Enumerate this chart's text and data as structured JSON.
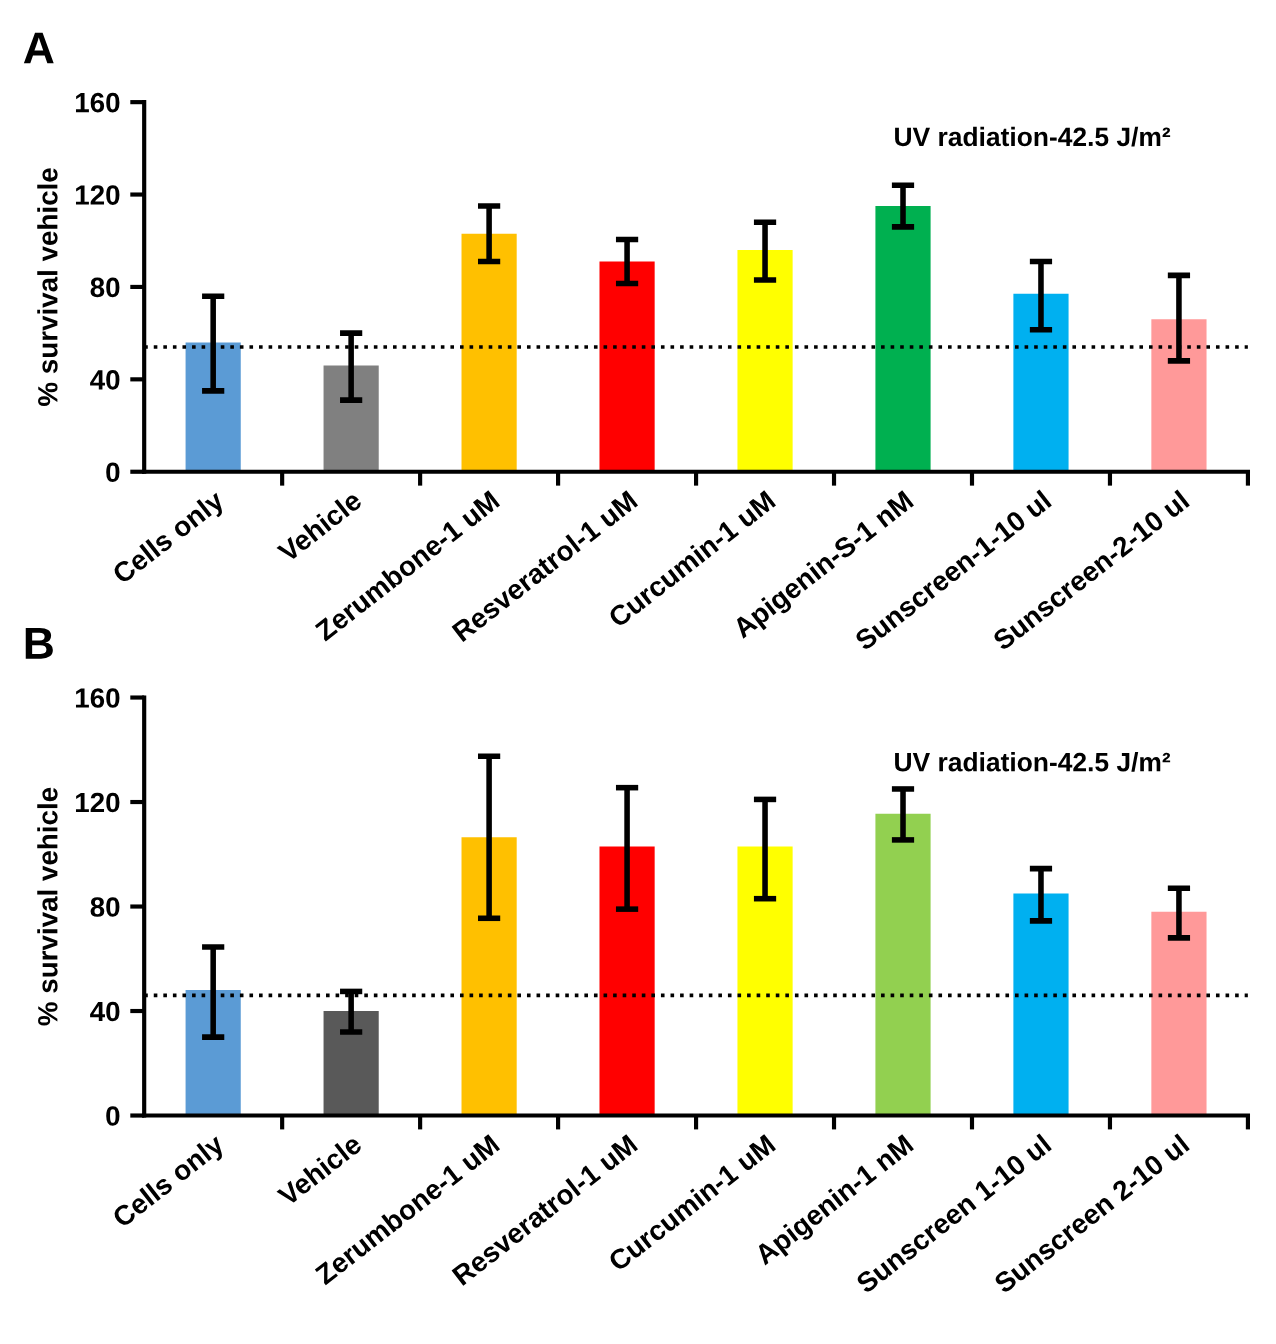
{
  "chart_data": [
    {
      "type": "bar",
      "title": "A",
      "ylabel": "% survival vehicle",
      "annotations": [
        "UV radiation-42.5 J/m²"
      ],
      "categories": [
        "Cells only",
        "Vehicle",
        "Zerumbone-1 uM",
        "Resveratrol-1 uM",
        "Curcumin-1 uM",
        "Apigenin-S-1 nM",
        "Sunscreen-1-10 ul",
        "Sunscreen-2-10 ul"
      ],
      "values": [
        56,
        46,
        103,
        91,
        96,
        115,
        77,
        66
      ],
      "errors": [
        [
          35,
          76
        ],
        [
          31,
          60
        ],
        [
          91,
          115
        ],
        [
          81.5,
          100.5
        ],
        [
          83,
          108
        ],
        [
          106,
          124
        ],
        [
          61.5,
          91
        ],
        [
          48,
          85
        ]
      ],
      "colors": [
        "#5b9bd5",
        "#808080",
        "#ffc000",
        "#ff0000",
        "#ffff00",
        "#00b050",
        "#00b0f0",
        "#ff9999"
      ],
      "ylim": [
        0,
        160
      ],
      "yticks": [
        0,
        40,
        80,
        120,
        160
      ],
      "grid": false,
      "legend": false,
      "ref_lines": [
        {
          "axis": "y",
          "value": 54,
          "label": null,
          "color": "#000000",
          "line_style": "dotted"
        }
      ]
    },
    {
      "type": "bar",
      "title": "B",
      "ylabel": "% survival vehicle",
      "annotations": [
        "UV radiation-42.5 J/m²"
      ],
      "categories": [
        "Cells only",
        "Vehicle",
        "Zerumbone-1 uM",
        "Resveratrol-1 uM",
        "Curcumin-1 uM",
        "Apigenin-1 nM",
        "Sunscreen 1-10 ul",
        "Sunscreen 2-10 ul"
      ],
      "values": [
        48,
        40,
        106.5,
        103,
        103,
        115.5,
        85,
        78
      ],
      "errors": [
        [
          30,
          64.5
        ],
        [
          32,
          47.5
        ],
        [
          75.5,
          137.5
        ],
        [
          79,
          125.5
        ],
        [
          83,
          121
        ],
        [
          105.5,
          125
        ],
        [
          74.5,
          94.5
        ],
        [
          68,
          87
        ]
      ],
      "colors": [
        "#5b9bd5",
        "#595959",
        "#ffc000",
        "#ff0000",
        "#ffff00",
        "#92d050",
        "#00b0f0",
        "#ff9999"
      ],
      "ylim": [
        0,
        160
      ],
      "yticks": [
        0,
        40,
        80,
        120,
        160
      ],
      "grid": false,
      "legend": false,
      "ref_lines": [
        {
          "axis": "y",
          "value": 46,
          "label": null,
          "color": "#000000",
          "line_style": "dotted"
        }
      ]
    }
  ]
}
